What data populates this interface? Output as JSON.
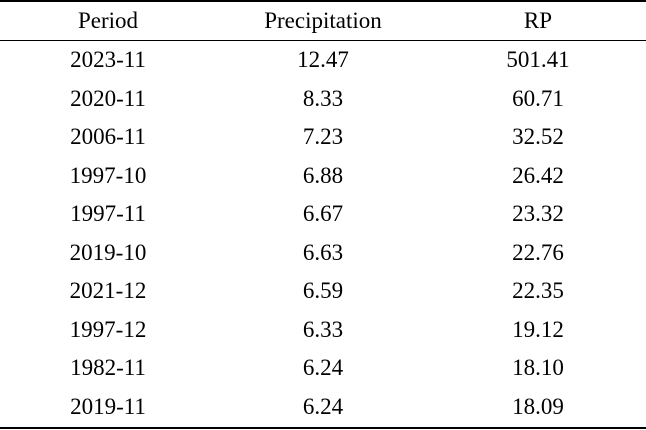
{
  "table": {
    "headers": [
      "Period",
      "Precipitation",
      "RP"
    ],
    "rows": [
      [
        "2023-11",
        "12.47",
        "501.41"
      ],
      [
        "2020-11",
        "8.33",
        "60.71"
      ],
      [
        "2006-11",
        "7.23",
        "32.52"
      ],
      [
        "1997-10",
        "6.88",
        "26.42"
      ],
      [
        "1997-11",
        "6.67",
        "23.32"
      ],
      [
        "2019-10",
        "6.63",
        "22.76"
      ],
      [
        "2021-12",
        "6.59",
        "22.35"
      ],
      [
        "1997-12",
        "6.33",
        "19.12"
      ],
      [
        "1982-11",
        "6.24",
        "18.10"
      ],
      [
        "2019-11",
        "6.24",
        "18.09"
      ]
    ]
  }
}
